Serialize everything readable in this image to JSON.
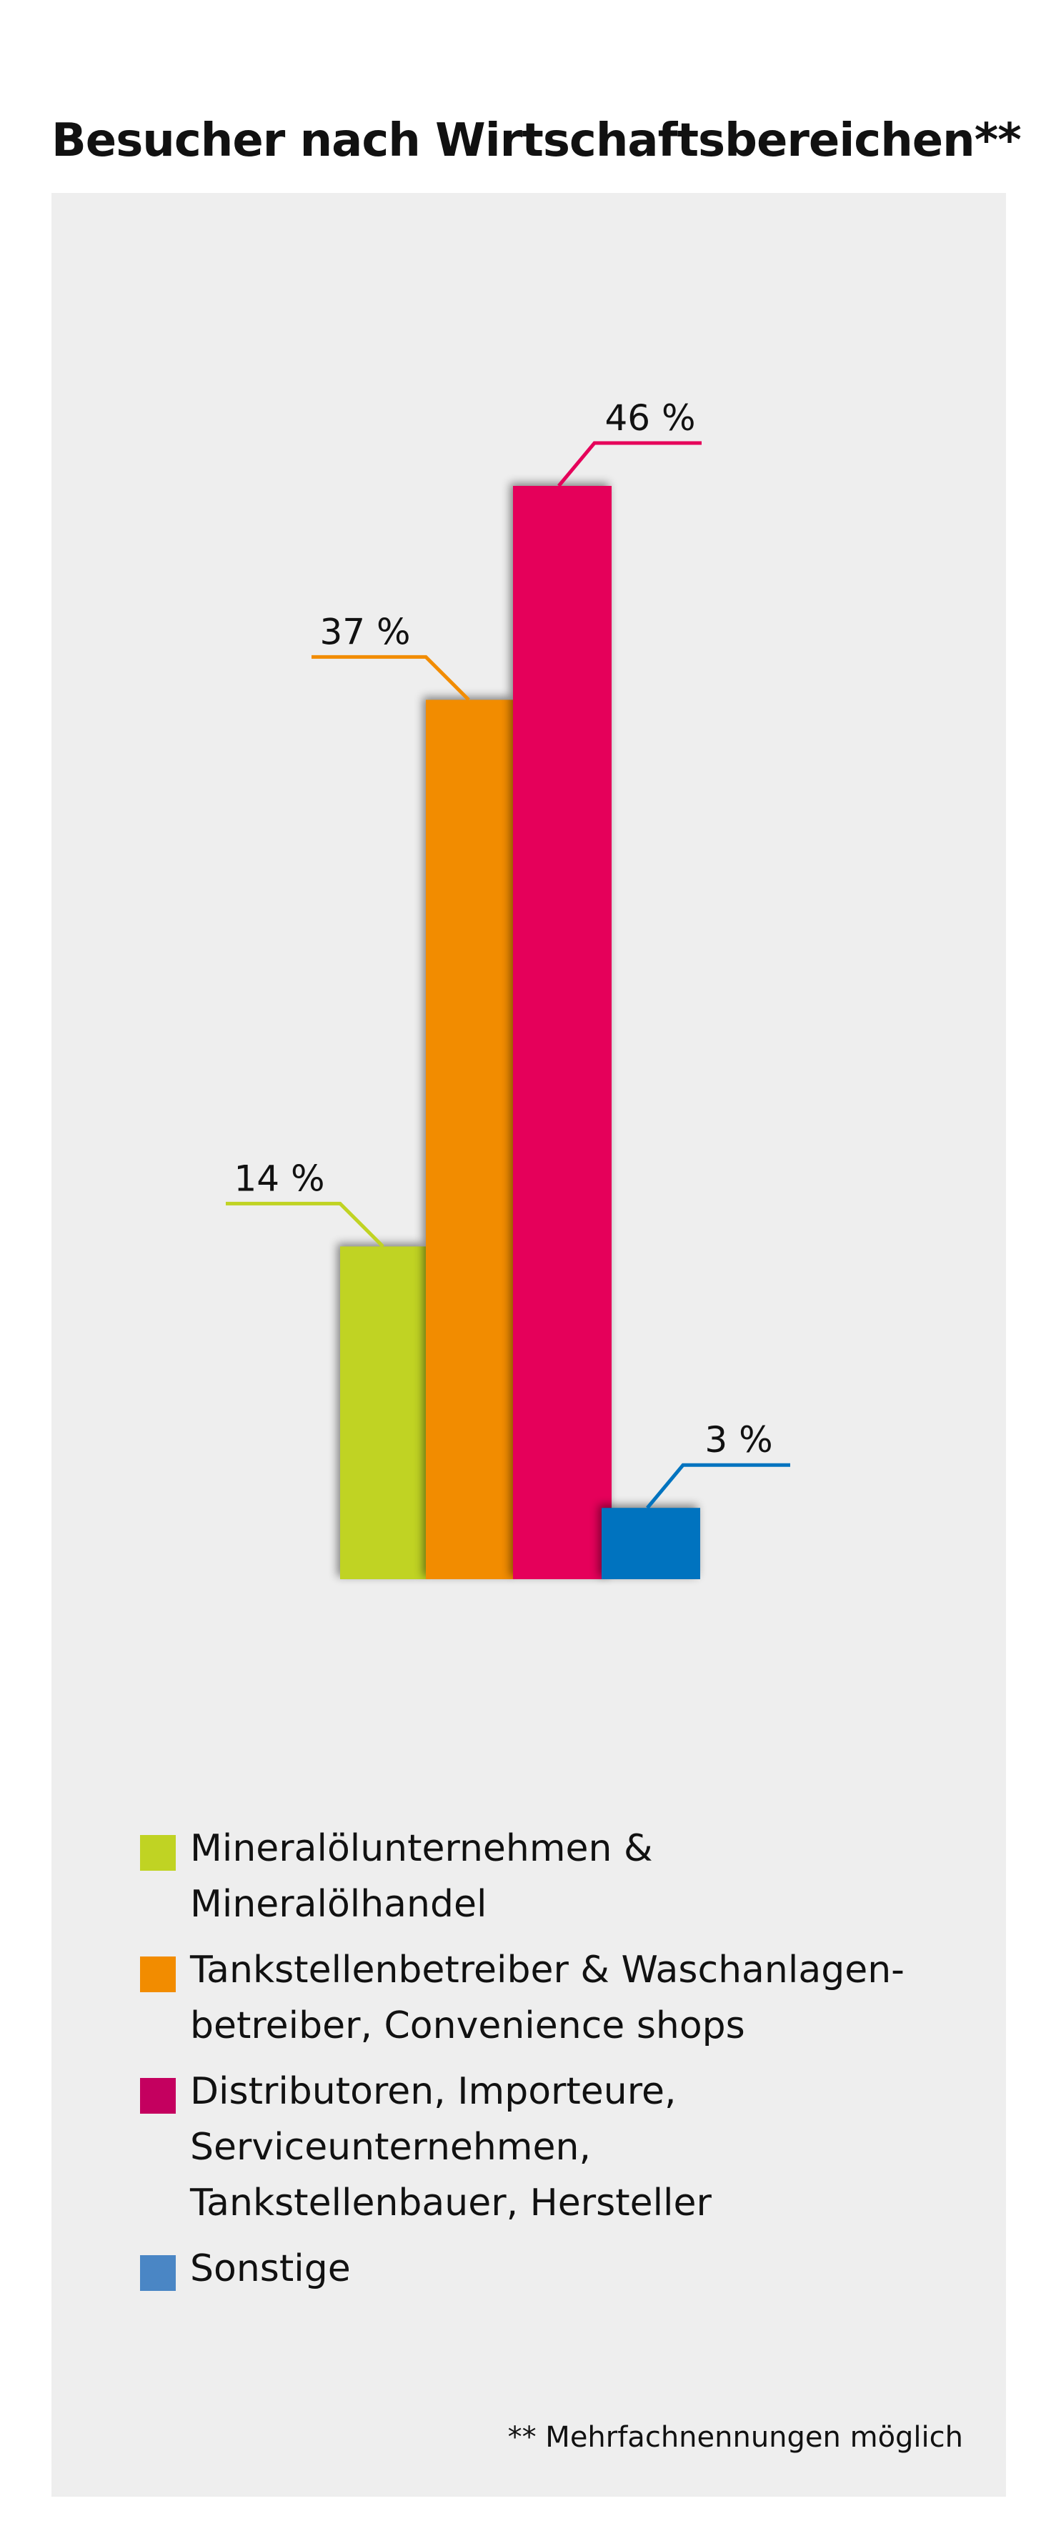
{
  "chart_data": {
    "type": "bar",
    "title": "Besucher nach Wirtschaftsbereichen**",
    "categories": [
      "Mineralölunternehmen & Mineralölhandel",
      "Tankstellenbetreiber & Waschanlagen-betreiber, Convenience shops",
      "Distributoren, Importeure, Serviceunternehmen, Tankstellenbauer, Hersteller",
      "Sonstige"
    ],
    "values": [
      14,
      37,
      46,
      3
    ],
    "value_labels": [
      "14 %",
      "37 %",
      "46 %",
      "3 %"
    ],
    "colors": [
      "#c0d323",
      "#f28c00",
      "#e5005a",
      "#0073bf"
    ],
    "unit": "%",
    "xlabel": "",
    "ylabel": "",
    "ylim": [
      0,
      46
    ],
    "grid": false,
    "legend_position": "bottom"
  },
  "legend": {
    "items": [
      {
        "label": "Mineralölunternehmen &\nMineralölhandel",
        "color": "#c0d323"
      },
      {
        "label": "Tankstellenbetreiber & Waschanlagen-\nbetreiber, Convenience shops",
        "color": "#f28c00"
      },
      {
        "label": "Distributoren, Importeure,\nServiceunternehmen,\nTankstellenbauer, Hersteller",
        "color": "#c4005f"
      },
      {
        "label": "Sonstige",
        "color": "#4a86c5"
      }
    ]
  },
  "footnote": "** Mehrfachnennungen möglich"
}
